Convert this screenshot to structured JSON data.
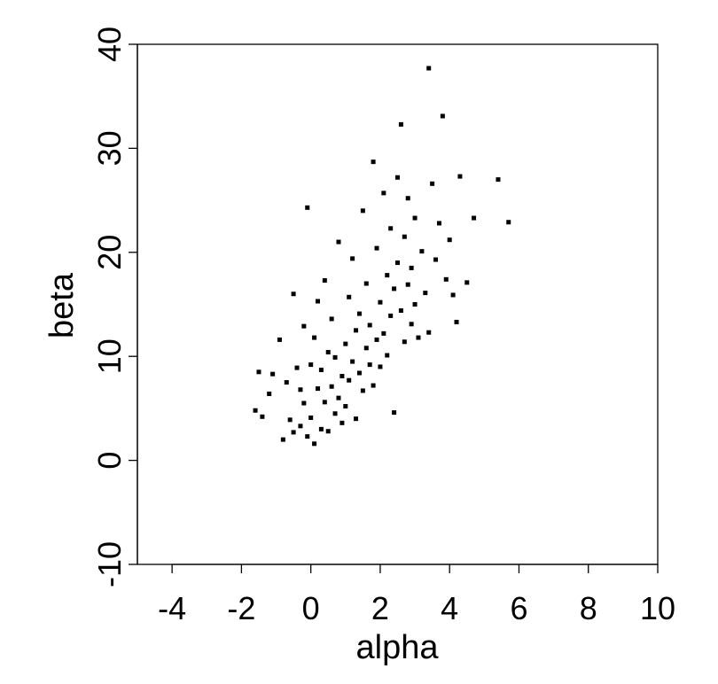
{
  "chart_data": {
    "type": "scatter",
    "title": "",
    "xlabel": "alpha",
    "ylabel": "beta",
    "xlim": [
      -5,
      10
    ],
    "ylim": [
      -10,
      40
    ],
    "xticks": [
      -4,
      -2,
      0,
      2,
      4,
      6,
      8,
      10
    ],
    "yticks": [
      -10,
      0,
      10,
      20,
      30,
      40
    ],
    "xtick_labels": [
      "-4",
      "-2",
      "0",
      "2",
      "4",
      "6",
      "8",
      "10"
    ],
    "ytick_labels": [
      "-10",
      "0",
      "10",
      "20",
      "30",
      "40"
    ],
    "grid": false,
    "legend": null,
    "series": [
      {
        "marker": "square",
        "color": "#000000",
        "points": [
          [
            -1.6,
            4.8
          ],
          [
            -1.5,
            8.5
          ],
          [
            -1.4,
            4.2
          ],
          [
            -1.2,
            6.4
          ],
          [
            -1.1,
            8.3
          ],
          [
            -0.9,
            11.6
          ],
          [
            -0.8,
            2.0
          ],
          [
            -0.7,
            7.5
          ],
          [
            -0.6,
            3.9
          ],
          [
            -0.5,
            2.7
          ],
          [
            -0.5,
            16.0
          ],
          [
            -0.4,
            8.9
          ],
          [
            -0.3,
            6.8
          ],
          [
            -0.3,
            3.3
          ],
          [
            -0.2,
            12.9
          ],
          [
            -0.2,
            5.5
          ],
          [
            -0.1,
            24.3
          ],
          [
            -0.1,
            2.3
          ],
          [
            0.0,
            9.2
          ],
          [
            0.0,
            4.1
          ],
          [
            0.1,
            1.6
          ],
          [
            0.1,
            11.8
          ],
          [
            0.2,
            6.9
          ],
          [
            0.2,
            15.3
          ],
          [
            0.3,
            3.0
          ],
          [
            0.3,
            8.7
          ],
          [
            0.4,
            5.6
          ],
          [
            0.4,
            17.3
          ],
          [
            0.5,
            10.4
          ],
          [
            0.5,
            2.8
          ],
          [
            0.6,
            7.1
          ],
          [
            0.6,
            13.6
          ],
          [
            0.7,
            4.5
          ],
          [
            0.7,
            9.9
          ],
          [
            0.8,
            6.0
          ],
          [
            0.8,
            21.0
          ],
          [
            0.9,
            8.1
          ],
          [
            0.9,
            3.6
          ],
          [
            1.0,
            11.2
          ],
          [
            1.0,
            5.2
          ],
          [
            1.1,
            15.7
          ],
          [
            1.1,
            7.7
          ],
          [
            1.2,
            9.5
          ],
          [
            1.2,
            19.4
          ],
          [
            1.3,
            12.5
          ],
          [
            1.3,
            4.0
          ],
          [
            1.4,
            8.4
          ],
          [
            1.4,
            14.1
          ],
          [
            1.5,
            6.7
          ],
          [
            1.5,
            24.0
          ],
          [
            1.6,
            10.8
          ],
          [
            1.6,
            17.0
          ],
          [
            1.7,
            9.2
          ],
          [
            1.7,
            13.0
          ],
          [
            1.8,
            28.7
          ],
          [
            1.8,
            7.2
          ],
          [
            1.9,
            11.6
          ],
          [
            1.9,
            20.4
          ],
          [
            2.0,
            9.0
          ],
          [
            2.0,
            15.2
          ],
          [
            2.1,
            12.2
          ],
          [
            2.1,
            25.7
          ],
          [
            2.2,
            17.8
          ],
          [
            2.2,
            10.1
          ],
          [
            2.3,
            13.9
          ],
          [
            2.3,
            22.3
          ],
          [
            2.4,
            16.5
          ],
          [
            2.4,
            4.6
          ],
          [
            2.5,
            19.0
          ],
          [
            2.5,
            27.2
          ],
          [
            2.6,
            14.4
          ],
          [
            2.6,
            32.3
          ],
          [
            2.7,
            21.5
          ],
          [
            2.7,
            11.4
          ],
          [
            2.8,
            16.9
          ],
          [
            2.8,
            25.2
          ],
          [
            2.9,
            13.1
          ],
          [
            2.9,
            18.5
          ],
          [
            3.0,
            23.3
          ],
          [
            3.0,
            15.0
          ],
          [
            3.1,
            11.8
          ],
          [
            3.2,
            20.1
          ],
          [
            3.3,
            16.1
          ],
          [
            3.4,
            37.7
          ],
          [
            3.4,
            12.3
          ],
          [
            3.5,
            26.6
          ],
          [
            3.6,
            19.3
          ],
          [
            3.7,
            22.8
          ],
          [
            3.8,
            33.1
          ],
          [
            3.9,
            17.4
          ],
          [
            4.0,
            21.2
          ],
          [
            4.1,
            15.9
          ],
          [
            4.2,
            13.3
          ],
          [
            4.3,
            27.3
          ],
          [
            4.5,
            17.1
          ],
          [
            4.7,
            23.3
          ],
          [
            5.4,
            27.0
          ],
          [
            5.7,
            22.9
          ]
        ]
      }
    ]
  }
}
